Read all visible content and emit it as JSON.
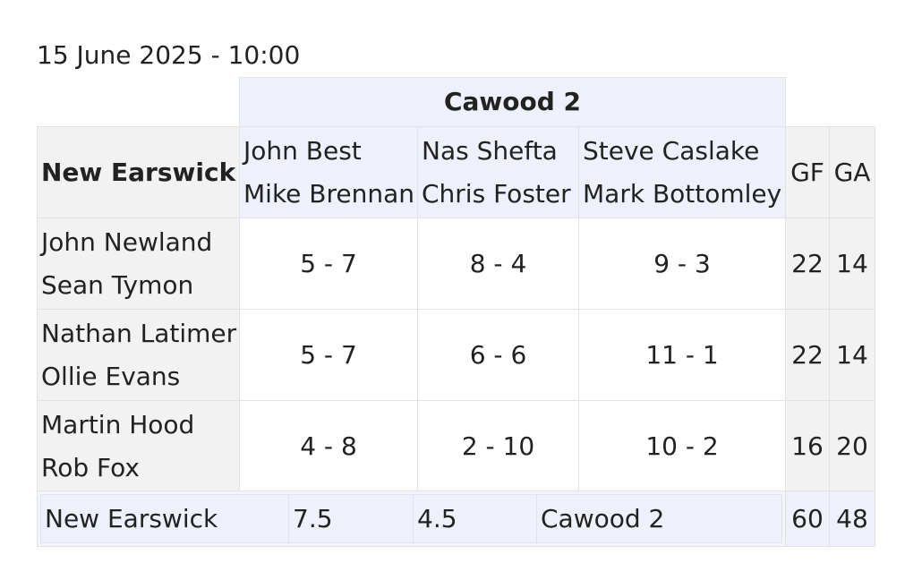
{
  "title": "15 June 2025 - 10:00",
  "away_team": "Cawood 2",
  "home_team": "New Earswick",
  "away_pairs": [
    [
      "John Best",
      "Mike Brennan"
    ],
    [
      "Nas Shefta",
      "Chris Foster"
    ],
    [
      "Steve Caslake",
      "Mark Bottomley"
    ]
  ],
  "col_gf": "GF",
  "col_ga": "GA",
  "rows": [
    {
      "players": [
        "John Newland",
        "Sean Tymon"
      ],
      "scores": [
        "5 - 7",
        "8 - 4",
        "9 - 3"
      ],
      "gf": "22",
      "ga": "14"
    },
    {
      "players": [
        "Nathan Latimer",
        "Ollie Evans"
      ],
      "scores": [
        "5 - 7",
        "6 - 6",
        "11 - 1"
      ],
      "gf": "22",
      "ga": "14"
    },
    {
      "players": [
        "Martin Hood",
        "Rob Fox"
      ],
      "scores": [
        "4 - 8",
        "2 - 10",
        "10 - 2"
      ],
      "gf": "16",
      "ga": "20"
    }
  ],
  "footer": {
    "home": "New Earswick",
    "home_points": "7.5",
    "away_points": "4.5",
    "away": "Cawood 2",
    "gf": "60",
    "ga": "48"
  }
}
